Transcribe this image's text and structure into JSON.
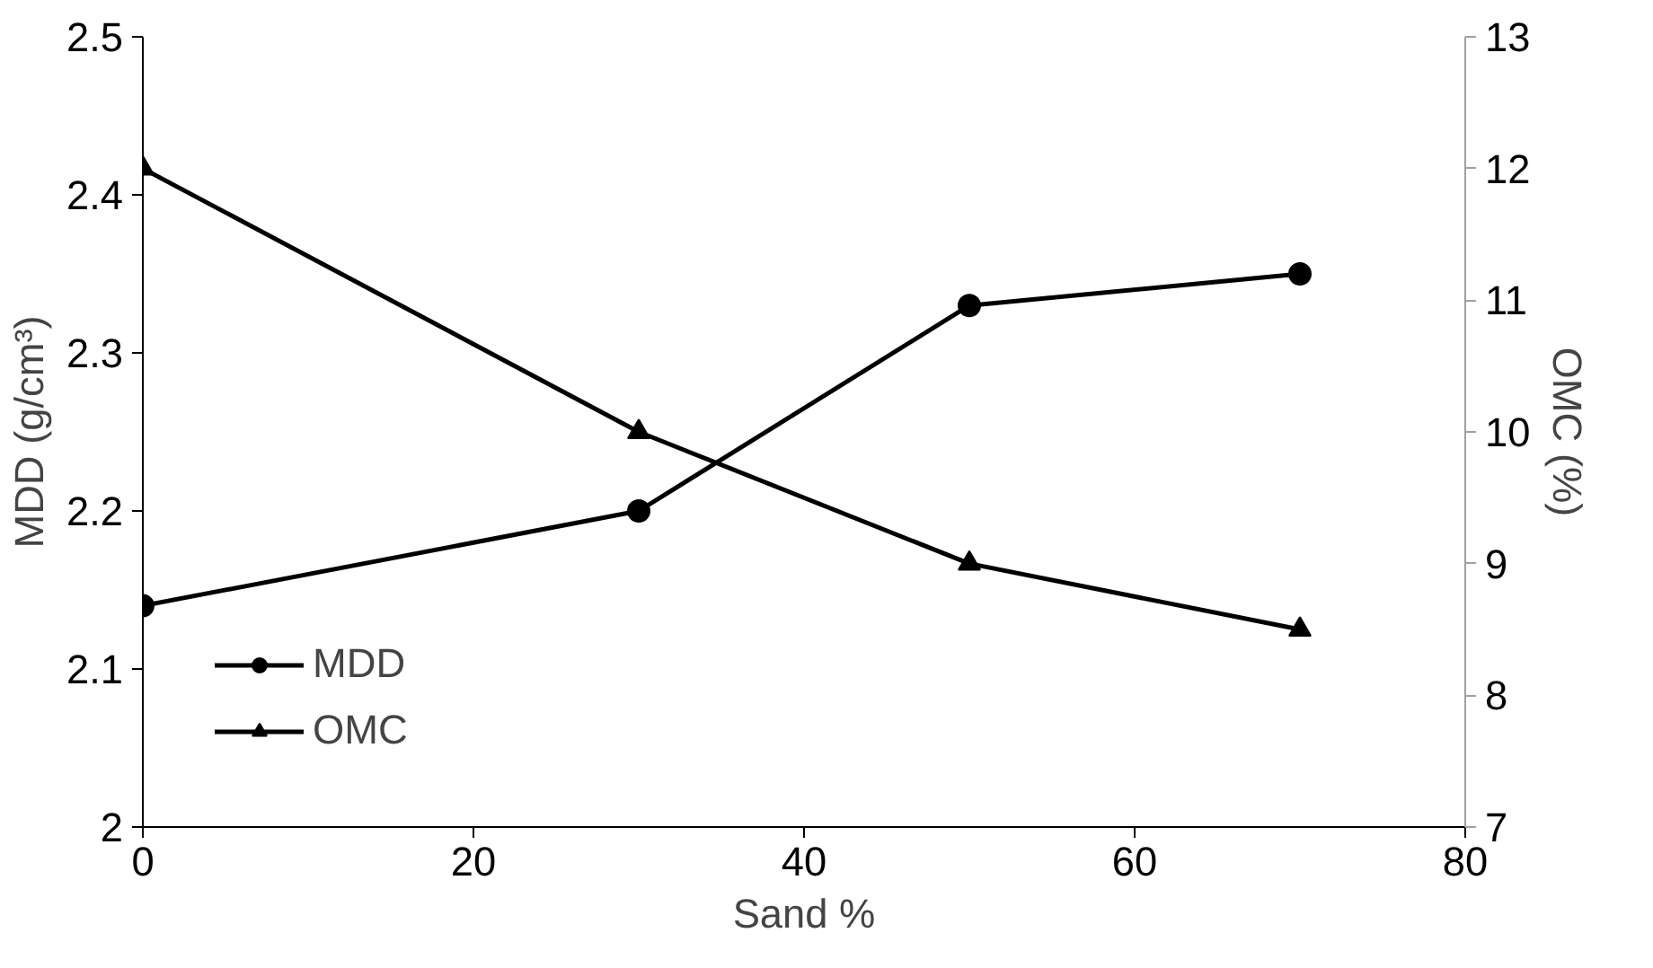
{
  "chart_data": {
    "type": "line",
    "xlabel": "Sand %",
    "ylabel": "MDD (g/cm³)",
    "y2label": "OMC (%)",
    "x": [
      0,
      30,
      50,
      70
    ],
    "series": [
      {
        "name": "MDD",
        "color": "#000000",
        "marker": "circle",
        "values": [
          2.14,
          2.2,
          2.33,
          2.35
        ]
      },
      {
        "name": "OMC",
        "color": "#000000",
        "marker": "triangle",
        "axis": "y2",
        "values": [
          12,
          10,
          9,
          8.5
        ]
      }
    ],
    "xlim": [
      0,
      80
    ],
    "xticks": [
      0,
      20,
      40,
      60,
      80
    ],
    "ylim": [
      2,
      2.5
    ],
    "yticks": [
      2,
      2.1,
      2.2,
      2.3,
      2.4,
      2.5
    ],
    "y2lim": [
      7,
      13
    ],
    "y2ticks": [
      7,
      8,
      9,
      10,
      11,
      12,
      13
    ],
    "grid": false,
    "legend": "bottom left",
    "line_style": "solid"
  }
}
